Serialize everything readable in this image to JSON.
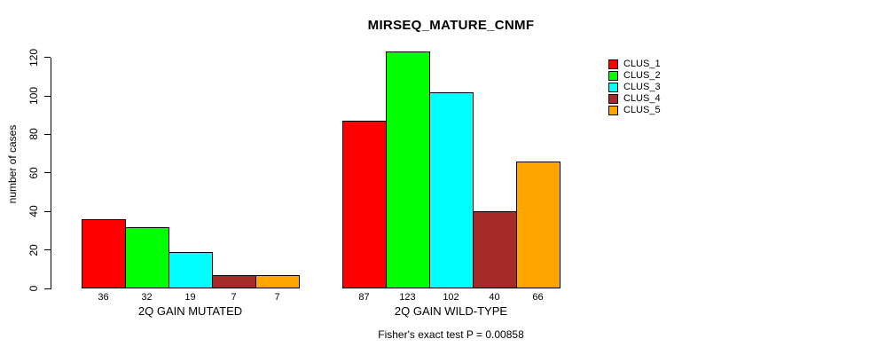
{
  "chart_data": {
    "type": "bar",
    "title": "MIRSEQ_MATURE_CNMF",
    "ylabel": "number of cases",
    "xlabel": "",
    "annotation": "Fisher's exact test P = 0.00858",
    "categories": [
      "2Q GAIN MUTATED",
      "2Q GAIN WILD-TYPE"
    ],
    "series": [
      {
        "name": "CLUS_1",
        "color": "#FF0000",
        "values": [
          36,
          87
        ]
      },
      {
        "name": "CLUS_2",
        "color": "#00FF00",
        "values": [
          32,
          123
        ]
      },
      {
        "name": "CLUS_3",
        "color": "#00FFFF",
        "values": [
          19,
          102
        ]
      },
      {
        "name": "CLUS_4",
        "color": "#A52A2A",
        "values": [
          7,
          40
        ]
      },
      {
        "name": "CLUS_5",
        "color": "#FFA500",
        "values": [
          7,
          66
        ]
      }
    ],
    "yticks": [
      0,
      20,
      40,
      60,
      80,
      100,
      120
    ],
    "ylim": [
      0,
      130
    ],
    "bar_value_labels": true,
    "grid": false,
    "legend_position": "right",
    "background_color": "#ffffff",
    "axis_color": "#000000"
  }
}
